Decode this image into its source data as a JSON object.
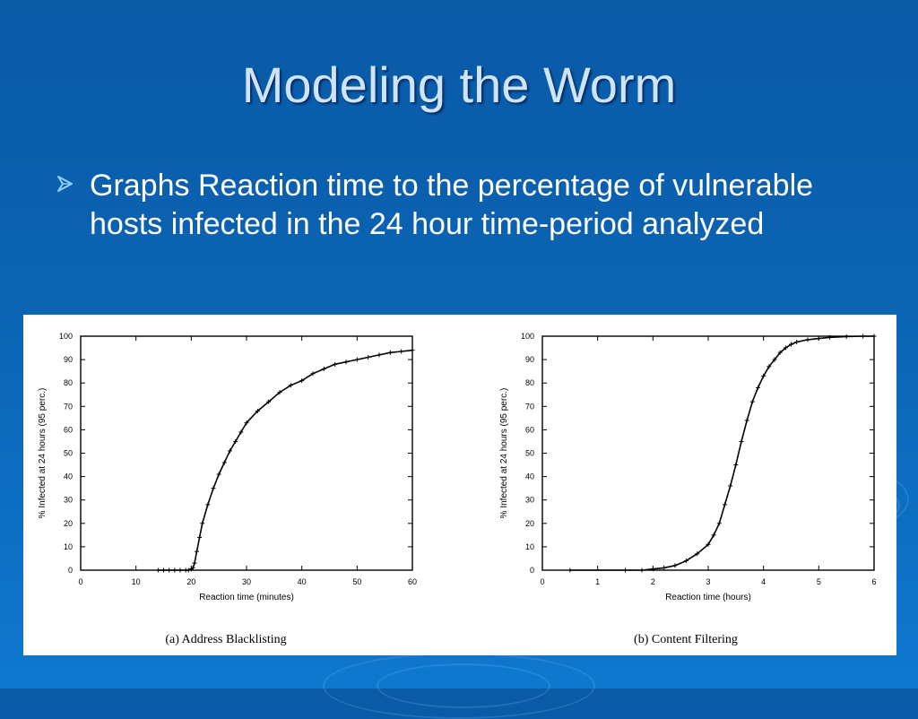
{
  "slide": {
    "title": "Modeling the Worm",
    "bullet": "Graphs Reaction time to the percentage of vulnerable hosts infected in the 24 hour time-period analyzed"
  },
  "colors": {
    "accent": "#8fd0f5",
    "title": "#cfe4f8",
    "text": "#ffffff"
  },
  "chart_data": [
    {
      "type": "line",
      "caption": "(a) Address Blacklisting",
      "xlabel": "Reaction time (minutes)",
      "ylabel": "% Infected at 24 hours (95 perc.)",
      "xlim": [
        0,
        60
      ],
      "ylim": [
        0,
        100
      ],
      "xticks": [
        0,
        10,
        20,
        30,
        40,
        50,
        60
      ],
      "yticks": [
        0,
        10,
        20,
        30,
        40,
        50,
        60,
        70,
        80,
        90,
        100
      ],
      "grid": false,
      "x": [
        14,
        15,
        16,
        17,
        18,
        19,
        19.5,
        20,
        20.3,
        20.6,
        21,
        21.5,
        22,
        23,
        24,
        25,
        26,
        27,
        28,
        29,
        30,
        32,
        34,
        36,
        38,
        40,
        42,
        44,
        46,
        48,
        50,
        52,
        54,
        56,
        58,
        60
      ],
      "y": [
        0,
        0,
        0,
        0,
        0,
        0,
        0,
        0.5,
        1,
        3,
        8,
        14,
        20,
        28,
        35,
        41,
        46,
        51,
        55,
        59,
        63,
        68,
        72,
        76,
        79,
        81,
        84,
        86,
        88,
        89,
        90,
        91,
        92,
        93,
        93.5,
        94
      ]
    },
    {
      "type": "line",
      "caption": "(b) Content Filtering",
      "xlabel": "Reaction time (hours)",
      "ylabel": "% Infected at 24 hours (95 perc.)",
      "xlim": [
        0,
        6
      ],
      "ylim": [
        0,
        100
      ],
      "xticks": [
        0,
        1,
        2,
        3,
        4,
        5,
        6
      ],
      "yticks": [
        0,
        10,
        20,
        30,
        40,
        50,
        60,
        70,
        80,
        90,
        100
      ],
      "grid": false,
      "x": [
        0.5,
        1.5,
        1.8,
        2.0,
        2.2,
        2.4,
        2.6,
        2.8,
        3.0,
        3.1,
        3.2,
        3.3,
        3.4,
        3.5,
        3.6,
        3.7,
        3.8,
        3.9,
        4.0,
        4.1,
        4.2,
        4.3,
        4.4,
        4.5,
        4.6,
        4.8,
        5.0,
        5.2,
        5.5,
        5.8,
        6.0
      ],
      "y": [
        0,
        0,
        0,
        0.5,
        1,
        2,
        4,
        7,
        11,
        15,
        20,
        28,
        36,
        45,
        55,
        64,
        72,
        78,
        83,
        87,
        90,
        93,
        95,
        96.5,
        97.5,
        98.5,
        99,
        99.5,
        99.8,
        100,
        100
      ]
    }
  ]
}
